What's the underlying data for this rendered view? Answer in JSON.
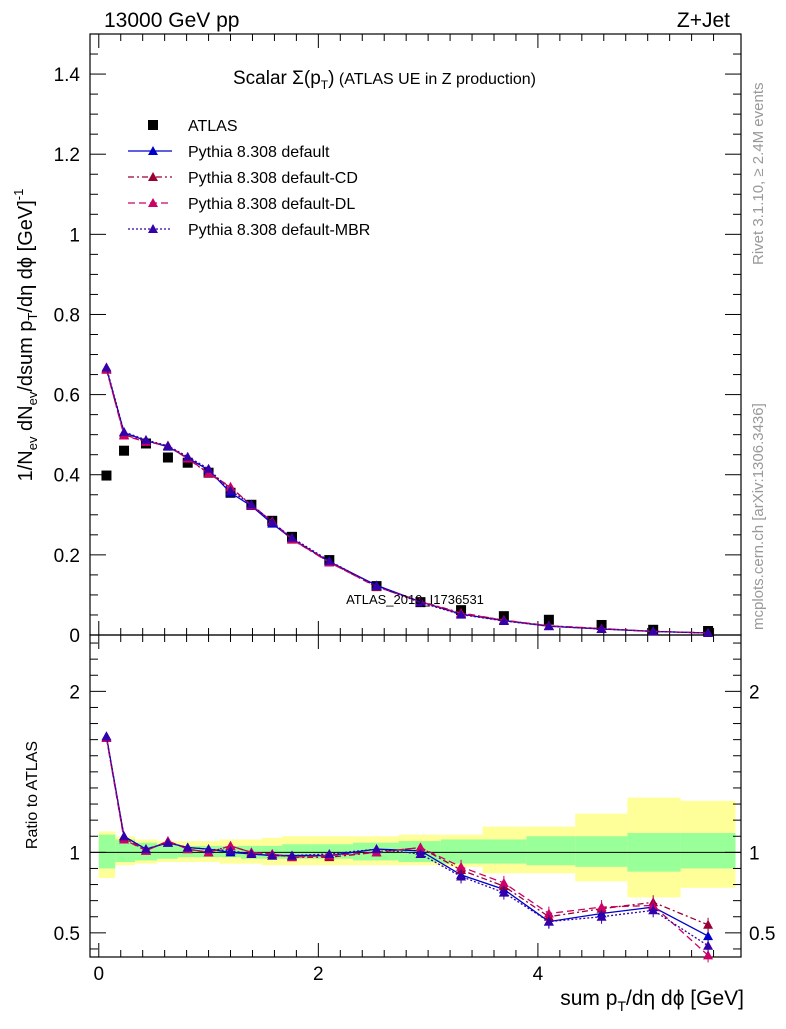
{
  "header": {
    "left": "13000 GeV pp",
    "right": "Z+Jet"
  },
  "main_title": {
    "prefix": "Scalar ",
    "sigma": "Σ(p",
    "sub": "T",
    "suffix": ")",
    "rest": " (ATLAS UE in Z production)"
  },
  "y_label_main": {
    "part1": "1/N",
    "sub1": "ev",
    "part2": " dN",
    "sub2": "ev",
    "part3": "/dsum p",
    "sub3": "T",
    "part4": "/dη dϕ  [GeV]",
    "sup": "-1"
  },
  "y_label_ratio": "Ratio to ATLAS",
  "x_label": {
    "part1": "sum p",
    "sub": "T",
    "part2": "/dη dϕ [GeV]"
  },
  "side_labels": {
    "rivet": "Rivet 3.1.10, ≥ 2.4M events",
    "mcplots": "mcplots.cern.ch [arXiv:1306.3436]"
  },
  "watermark": "ATLAS_2019_I1736531",
  "legend": [
    {
      "label": "ATLAS",
      "marker": "square",
      "color": "#000000",
      "dash": ""
    },
    {
      "label": "Pythia 8.308 default",
      "marker": "triangle",
      "color": "#0000cc",
      "dash": ""
    },
    {
      "label": "Pythia 8.308 default-CD",
      "marker": "triangle",
      "color": "#990033",
      "dash": "6,3,2,3"
    },
    {
      "label": "Pythia 8.308 default-DL",
      "marker": "triangle",
      "color": "#cc0066",
      "dash": "7,4"
    },
    {
      "label": "Pythia 8.308 default-MBR",
      "marker": "triangle",
      "color": "#3300aa",
      "dash": "2,2"
    }
  ],
  "chart_data": {
    "type": "line",
    "x": [
      0.07,
      0.23,
      0.43,
      0.63,
      0.81,
      1.0,
      1.2,
      1.39,
      1.58,
      1.76,
      2.1,
      2.53,
      2.93,
      3.3,
      3.69,
      4.1,
      4.58,
      5.05,
      5.55
    ],
    "xlim": [
      -0.08,
      5.85
    ],
    "xticks": [
      0,
      2,
      4
    ],
    "main": {
      "ylim": [
        0,
        1.5
      ],
      "yticks": [
        0,
        0.2,
        0.4,
        0.6,
        0.8,
        1,
        1.2,
        1.4
      ],
      "ytick_labels": [
        "0",
        "0.2",
        "0.4",
        "0.6",
        "0.8",
        "1",
        "1.2",
        "1.4"
      ],
      "series": [
        {
          "name": "ATLAS",
          "values": [
            0.398,
            0.46,
            0.478,
            0.443,
            0.43,
            0.405,
            0.355,
            0.325,
            0.285,
            0.245,
            0.187,
            0.122,
            0.082,
            0.062,
            0.047,
            0.038,
            0.025,
            0.013,
            0.01
          ]
        },
        {
          "name": "Pythia 8.308 default",
          "values": [
            0.665,
            0.505,
            0.485,
            0.47,
            0.442,
            0.412,
            0.355,
            0.322,
            0.278,
            0.24,
            0.183,
            0.124,
            0.083,
            0.052,
            0.036,
            0.022,
            0.015,
            0.009,
            0.005
          ]
        },
        {
          "name": "Pythia 8.308 default-CD",
          "values": [
            0.662,
            0.5,
            0.483,
            0.472,
            0.44,
            0.403,
            0.368,
            0.325,
            0.283,
            0.238,
            0.182,
            0.12,
            0.084,
            0.055,
            0.037,
            0.023,
            0.016,
            0.009,
            0.005
          ]
        },
        {
          "name": "Pythia 8.308 default-DL",
          "values": [
            0.663,
            0.498,
            0.482,
            0.473,
            0.441,
            0.404,
            0.37,
            0.323,
            0.284,
            0.239,
            0.181,
            0.121,
            0.083,
            0.054,
            0.037,
            0.023,
            0.016,
            0.009,
            0.005
          ]
        },
        {
          "name": "Pythia 8.308 default-MBR",
          "values": [
            0.668,
            0.507,
            0.487,
            0.472,
            0.445,
            0.415,
            0.36,
            0.326,
            0.281,
            0.243,
            0.185,
            0.122,
            0.081,
            0.051,
            0.035,
            0.022,
            0.015,
            0.009,
            0.005
          ]
        }
      ]
    },
    "ratio": {
      "ylim": [
        0.35,
        2.35
      ],
      "yticks": [
        0.5,
        1,
        2
      ],
      "ytick_labels": [
        "0.5",
        "1",
        "2"
      ],
      "band_green": [
        [
          0.9,
          1.11
        ],
        [
          0.94,
          1.08
        ],
        [
          0.95,
          1.06
        ],
        [
          0.96,
          1.05
        ],
        [
          0.97,
          1.04
        ],
        [
          0.97,
          1.04
        ],
        [
          0.97,
          1.04
        ],
        [
          0.96,
          1.04
        ],
        [
          0.96,
          1.04
        ],
        [
          0.96,
          1.05
        ],
        [
          0.96,
          1.05
        ],
        [
          0.95,
          1.06
        ],
        [
          0.94,
          1.07
        ],
        [
          0.93,
          1.08
        ],
        [
          0.93,
          1.08
        ],
        [
          0.92,
          1.1
        ],
        [
          0.91,
          1.1
        ],
        [
          0.88,
          1.12
        ],
        [
          0.9,
          1.12
        ]
      ],
      "band_yellow": [
        [
          0.84,
          1.13
        ],
        [
          0.92,
          1.1
        ],
        [
          0.93,
          1.08
        ],
        [
          0.94,
          1.07
        ],
        [
          0.94,
          1.07
        ],
        [
          0.94,
          1.07
        ],
        [
          0.93,
          1.08
        ],
        [
          0.93,
          1.08
        ],
        [
          0.92,
          1.09
        ],
        [
          0.92,
          1.1
        ],
        [
          0.92,
          1.1
        ],
        [
          0.92,
          1.1
        ],
        [
          0.92,
          1.11
        ],
        [
          0.91,
          1.11
        ],
        [
          0.87,
          1.16
        ],
        [
          0.87,
          1.16
        ],
        [
          0.82,
          1.24
        ],
        [
          0.72,
          1.34
        ],
        [
          0.78,
          1.32
        ]
      ],
      "series": [
        {
          "name": "Pythia 8.308 default",
          "values": [
            1.72,
            1.1,
            1.02,
            1.06,
            1.03,
            1.02,
            1.0,
            0.99,
            0.98,
            0.98,
            0.98,
            1.02,
            1.01,
            0.86,
            0.77,
            0.57,
            0.62,
            0.66,
            0.48
          ]
        },
        {
          "name": "Pythia 8.308 default-CD",
          "values": [
            1.71,
            1.09,
            1.01,
            1.07,
            1.02,
            1.0,
            1.04,
            1.0,
            0.99,
            0.97,
            0.97,
            1.0,
            1.03,
            0.89,
            0.79,
            0.6,
            0.65,
            0.69,
            0.55
          ]
        },
        {
          "name": "Pythia 8.308 default-DL",
          "values": [
            1.71,
            1.08,
            1.01,
            1.07,
            1.02,
            1.0,
            1.04,
            1.0,
            0.99,
            0.97,
            0.98,
            1.0,
            1.03,
            0.91,
            0.81,
            0.62,
            0.66,
            0.67,
            0.36
          ]
        },
        {
          "name": "Pythia 8.308 default-MBR",
          "values": [
            1.72,
            1.1,
            1.02,
            1.06,
            1.03,
            1.02,
            1.01,
            0.99,
            0.98,
            0.98,
            0.99,
            1.02,
            0.99,
            0.85,
            0.75,
            0.57,
            0.6,
            0.64,
            0.42
          ]
        }
      ]
    }
  }
}
